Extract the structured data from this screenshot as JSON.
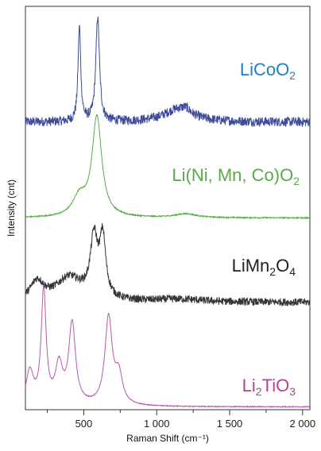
{
  "chart_data": {
    "type": "line",
    "xlabel": "Raman Shift (cm⁻¹)",
    "ylabel": "Intensity (cnt)",
    "xlim": [
      100,
      2050
    ],
    "x_ticks": [
      {
        "value": 500,
        "label": "500"
      },
      {
        "value": 1000,
        "label": "1 000"
      },
      {
        "value": 1500,
        "label": "1 500"
      },
      {
        "value": 2000,
        "label": "2 000"
      }
    ],
    "grid": false,
    "y_ticks_shown": false,
    "series": [
      {
        "name": "LiCoO2",
        "color": "#3d4b9a",
        "noise": 0.05,
        "offset": 3.0,
        "baseline": 0.03,
        "peaks": [
          {
            "center": 470,
            "height": 1.0,
            "width": 11
          },
          {
            "center": 595,
            "height": 1.1,
            "width": 15
          },
          {
            "center": 1150,
            "height": 0.14,
            "width": 120
          },
          {
            "center": 1200,
            "height": 0.04,
            "width": 30
          }
        ]
      },
      {
        "name": "Li(Ni, Mn, Co)O2",
        "color": "#5aaa4a",
        "noise": 0.006,
        "offset": 2.0,
        "baseline": 0.02,
        "peaks": [
          {
            "center": 470,
            "height": 0.2,
            "width": 55
          },
          {
            "center": 590,
            "height": 1.05,
            "width": 40
          },
          {
            "center": 1200,
            "height": 0.04,
            "width": 90
          }
        ]
      },
      {
        "name": "LiMn2O4",
        "color": "#333333",
        "noise": 0.04,
        "offset": 1.05,
        "baseline": 0.08,
        "peaks": [
          {
            "center": 180,
            "height": 0.2,
            "width": 55
          },
          {
            "center": 400,
            "height": 0.25,
            "width": 110
          },
          {
            "center": 570,
            "height": 0.62,
            "width": 30
          },
          {
            "center": 630,
            "height": 0.62,
            "width": 25
          },
          {
            "center": 1150,
            "height": 0.03,
            "width": 200
          }
        ]
      },
      {
        "name": "Li2TiO3",
        "color": "#b85aa8",
        "noise": 0.004,
        "offset": 0.03,
        "baseline": 0.0,
        "peaks": [
          {
            "center": 130,
            "height": 0.35,
            "width": 30
          },
          {
            "center": 225,
            "height": 1.2,
            "width": 20
          },
          {
            "center": 330,
            "height": 0.4,
            "width": 30
          },
          {
            "center": 420,
            "height": 0.85,
            "width": 28
          },
          {
            "center": 670,
            "height": 0.92,
            "width": 30
          },
          {
            "center": 740,
            "height": 0.3,
            "width": 30
          }
        ]
      }
    ]
  },
  "labels": [
    {
      "key": "licoo2",
      "color": "#1e7fc4",
      "parts": [
        {
          "t": "LiCoO",
          "sub": false
        },
        {
          "t": "2",
          "sub": true
        }
      ]
    },
    {
      "key": "nmc",
      "color": "#5aaa4a",
      "parts": [
        {
          "t": "Li(Ni, Mn, Co)O",
          "sub": false
        },
        {
          "t": "2",
          "sub": true
        }
      ]
    },
    {
      "key": "limn2o4",
      "color": "#222222",
      "parts": [
        {
          "t": "LiMn",
          "sub": false
        },
        {
          "t": "2",
          "sub": true
        },
        {
          "t": "O",
          "sub": false
        },
        {
          "t": "4",
          "sub": true
        }
      ]
    },
    {
      "key": "li2tio3",
      "color": "#b5418f",
      "parts": [
        {
          "t": "Li",
          "sub": false
        },
        {
          "t": "2",
          "sub": true
        },
        {
          "t": "TiO",
          "sub": false
        },
        {
          "t": "3",
          "sub": true
        }
      ]
    }
  ]
}
